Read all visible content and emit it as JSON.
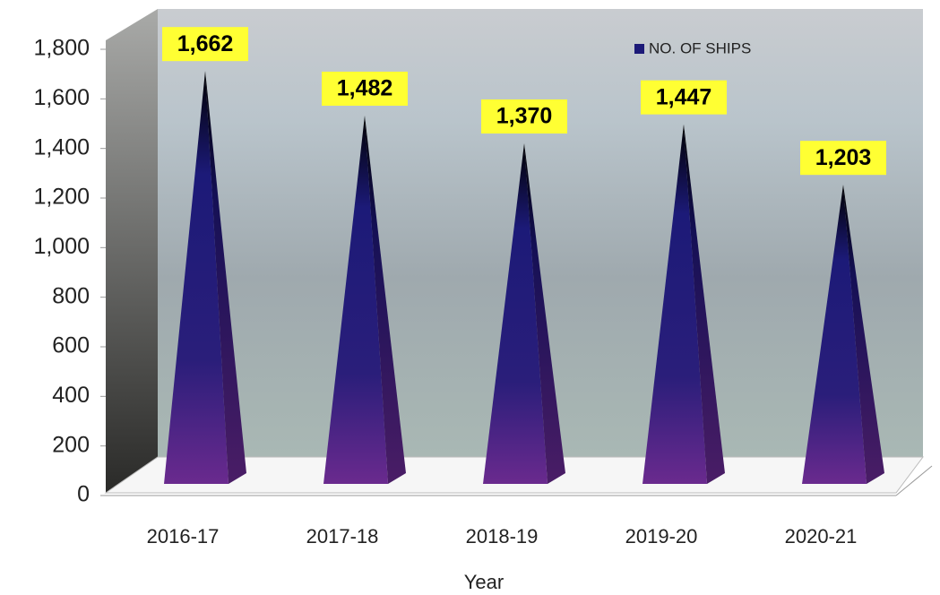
{
  "chart_data": {
    "type": "pyramid",
    "xlabel": "Year",
    "categories": [
      "2016-17",
      "2017-18",
      "2018-19",
      "2019-20",
      "2020-21"
    ],
    "series": [
      {
        "name": "NO. OF SHIPS",
        "color": "#1c1a78",
        "values": [
          1662,
          1482,
          1370,
          1447,
          1203
        ],
        "value_labels": [
          "1,662",
          "1,482",
          "1,370",
          "1,447",
          "1,203"
        ]
      }
    ],
    "ylim": [
      0,
      1800
    ],
    "yticks": [
      0,
      200,
      400,
      600,
      800,
      {
        "value": 1000,
        "label": "1,000"
      },
      {
        "value": 1200,
        "label": "1,200"
      },
      {
        "value": 1400,
        "label": "1,400"
      },
      {
        "value": 1600,
        "label": "1,600"
      },
      {
        "value": 1800,
        "label": "1,800"
      }
    ],
    "legend": "top-right"
  }
}
